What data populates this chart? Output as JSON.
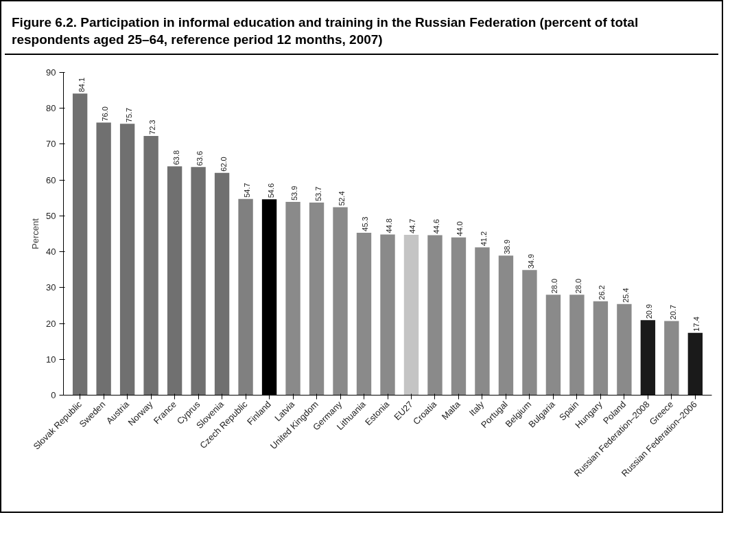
{
  "chart_data": {
    "type": "bar",
    "title": "Figure 6.2. Participation in informal education and training in the Russian Federation (percent of total respondents aged 25–64, reference period 12 months, 2007)",
    "ylabel": "Percent",
    "categories": [
      "Slovak Republic",
      "Sweden",
      "Austria",
      "Norway",
      "France",
      "Cyprus",
      "Slovenia",
      "Czech Republic",
      "Finland",
      "Latvia",
      "United Kingdom",
      "Germany",
      "Lithuania",
      "Estonia",
      "EU27",
      "Croatia",
      "Malta",
      "Italy",
      "Portugal",
      "Belgium",
      "Bulgaria",
      "Spain",
      "Hungary",
      "Poland",
      "Russian Federation–2008",
      "Greece",
      "Russian Federation–2006"
    ],
    "values": [
      84.1,
      76.0,
      75.7,
      72.3,
      63.8,
      63.6,
      62.0,
      54.7,
      54.6,
      53.9,
      53.7,
      52.4,
      45.3,
      44.8,
      44.7,
      44.6,
      44.0,
      41.2,
      38.9,
      34.9,
      28.0,
      28.0,
      26.2,
      25.4,
      20.9,
      20.7,
      17.4
    ],
    "value_labels": [
      "84.1",
      "76.0",
      "75.7",
      "72.3",
      "63.8",
      "63.6",
      "62.0",
      "54.7",
      "54.6",
      "53.9",
      "53.7",
      "52.4",
      "45.3",
      "44.8",
      "44.7",
      "44.6",
      "44.0",
      "41.2",
      "38.9",
      "34.9",
      "28.0",
      "28.0",
      "26.2",
      "25.4",
      "20.9",
      "20.7",
      "17.4"
    ],
    "colors": [
      "#707070",
      "#707070",
      "#707070",
      "#707070",
      "#707070",
      "#707070",
      "#707070",
      "#808080",
      "#000000",
      "#8a8a8a",
      "#8a8a8a",
      "#8a8a8a",
      "#8a8a8a",
      "#8a8a8a",
      "#c4c4c4",
      "#8a8a8a",
      "#8a8a8a",
      "#8a8a8a",
      "#8a8a8a",
      "#8a8a8a",
      "#8a8a8a",
      "#8a8a8a",
      "#8a8a8a",
      "#8a8a8a",
      "#1a1a1a",
      "#8a8a8a",
      "#1a1a1a"
    ],
    "ylim": [
      0,
      90
    ],
    "yticks": [
      0,
      10,
      20,
      30,
      40,
      50,
      60,
      70,
      80,
      90
    ],
    "grid": false
  }
}
